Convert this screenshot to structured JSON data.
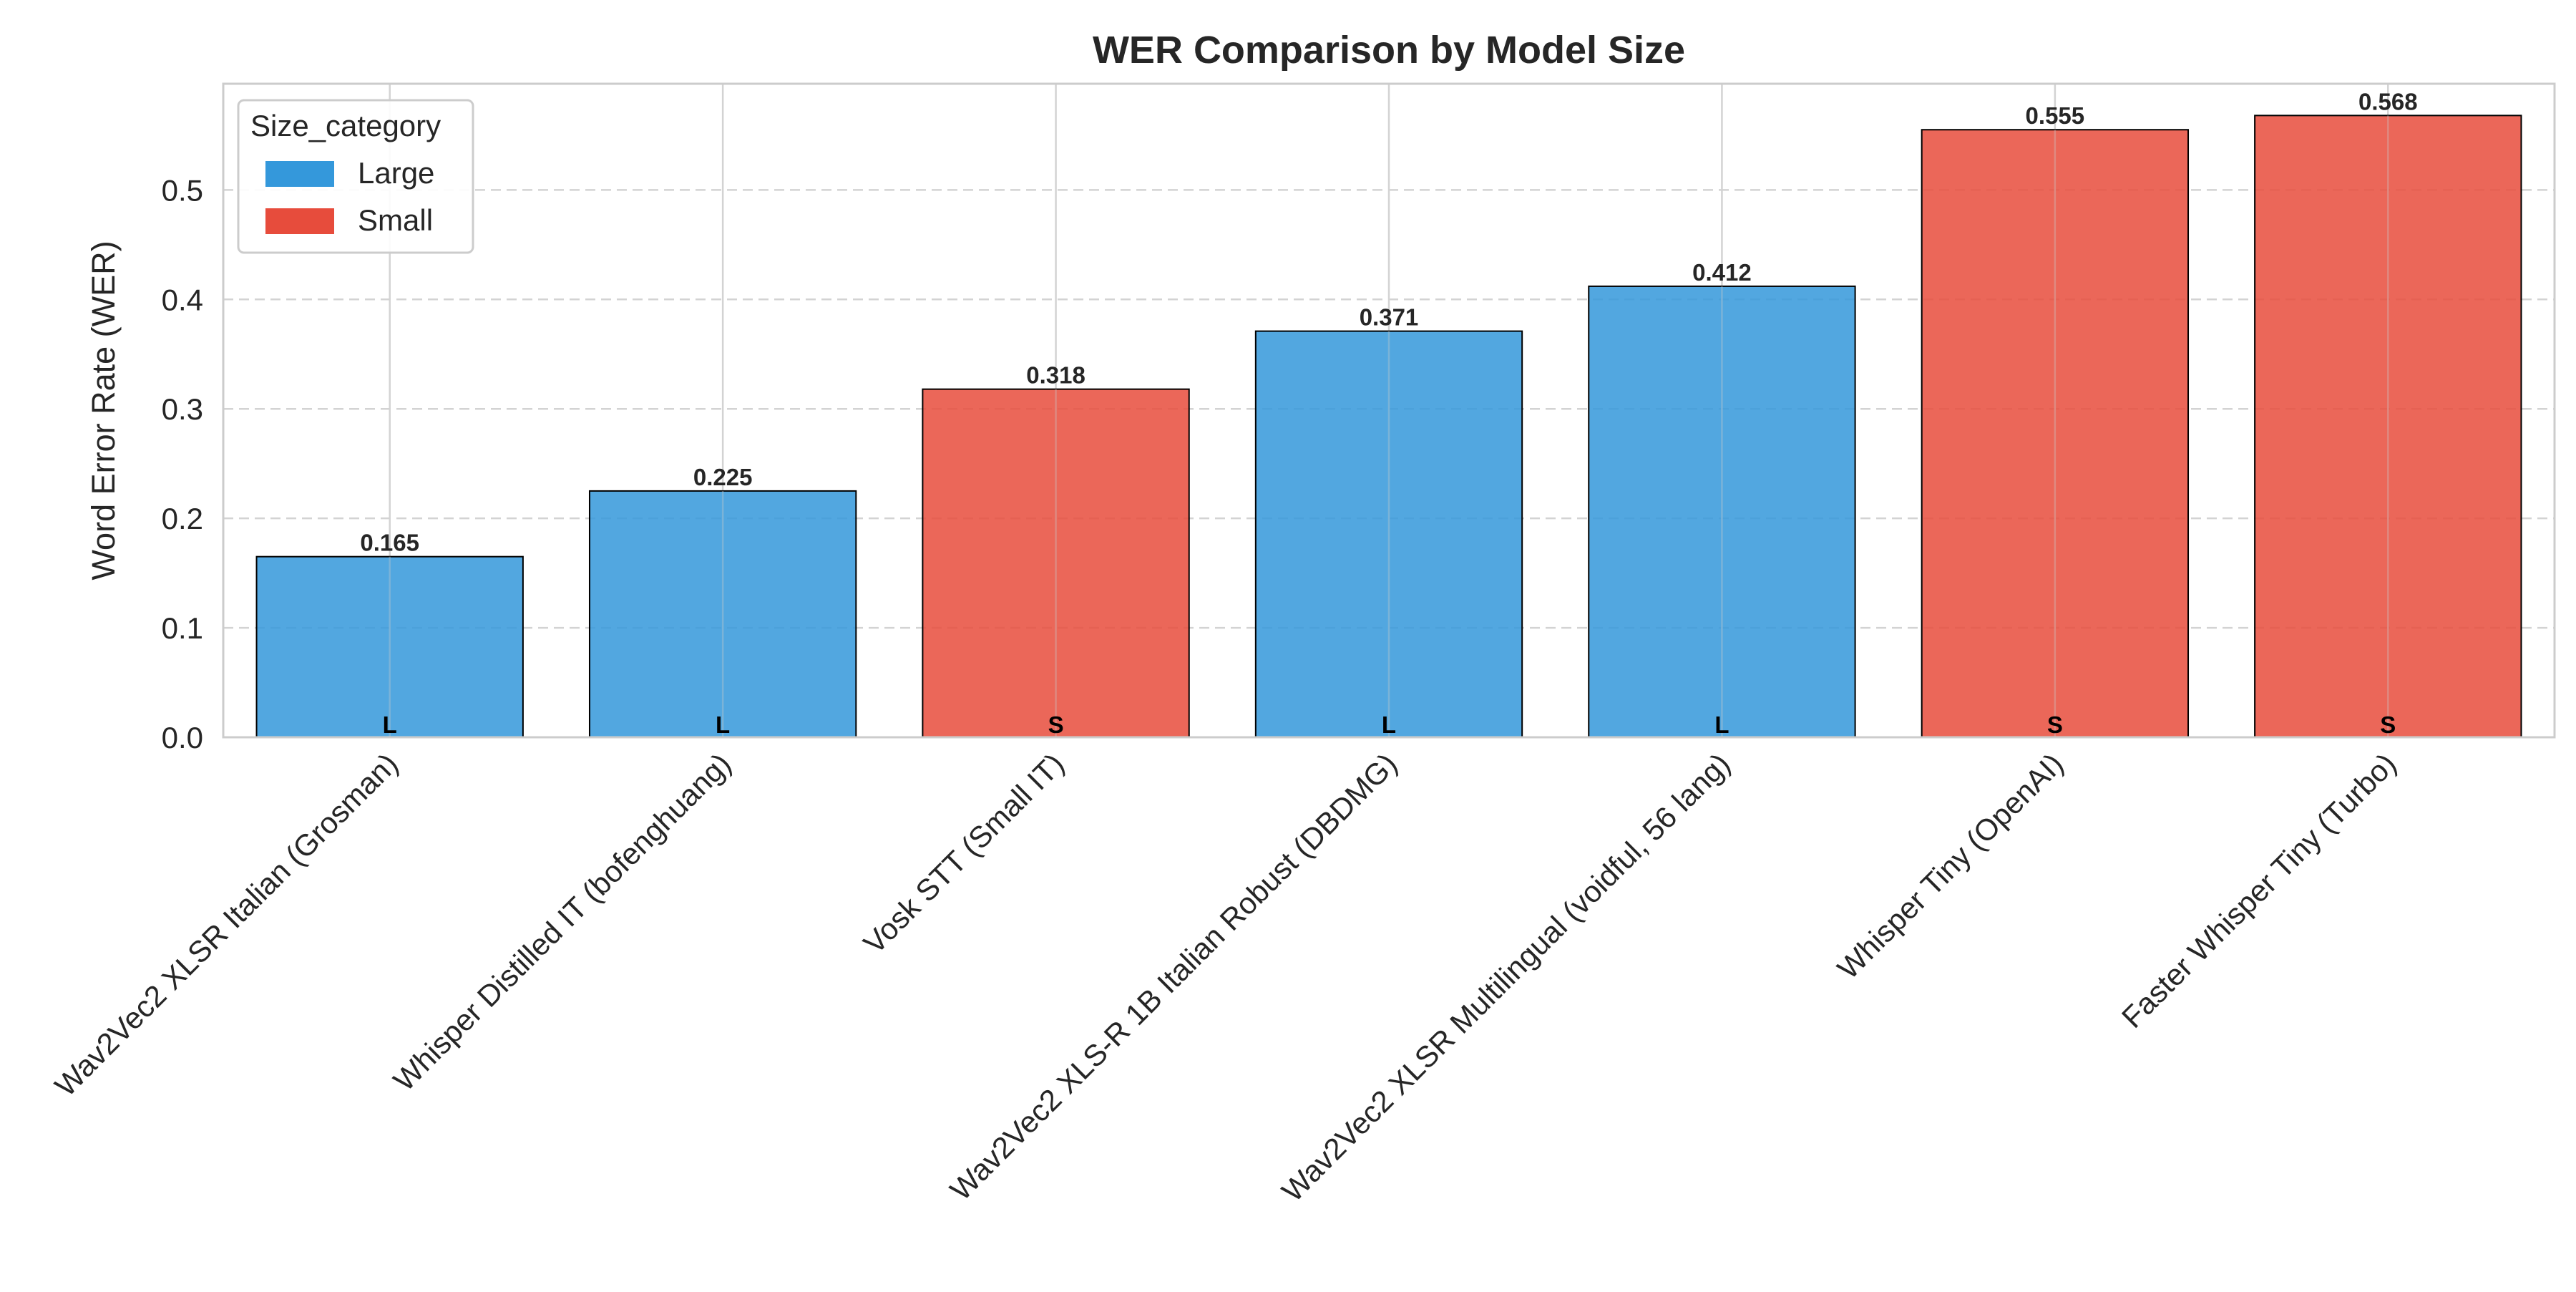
{
  "colors": {
    "Large": "#3498db",
    "Small": "#e74c3c",
    "grid": "#d3d3d3",
    "axes_edge": "#cccccc",
    "text": "#262626",
    "bar_edge": "#000000"
  },
  "chart_data": {
    "type": "bar",
    "title": "WER Comparison by Model Size",
    "xlabel": "",
    "ylabel": "Word Error Rate (WER)",
    "ylim": [
      0,
      0.597
    ],
    "yticks": [
      0.0,
      0.1,
      0.2,
      0.3,
      0.4,
      0.5
    ],
    "ytick_labels": [
      "0.0",
      "0.1",
      "0.2",
      "0.3",
      "0.4",
      "0.5"
    ],
    "grid": "y dashed, x solid",
    "legend": {
      "title": "Size_category",
      "position": "top-left",
      "entries": [
        "Large",
        "Small"
      ]
    },
    "categories": [
      "Wav2Vec2 XLSR Italian (Grosman)",
      "Whisper Distilled IT (bofenghuang)",
      "Vosk STT (Small IT)",
      "Wav2Vec2 XLS-R 1B Italian Robust (DBDMG)",
      "Wav2Vec2 XLSR Multilingual (voidful, 56 lang)",
      "Whisper Tiny (OpenAI)",
      "Faster Whisper Tiny (Turbo)"
    ],
    "values": [
      0.165,
      0.225,
      0.318,
      0.371,
      0.412,
      0.555,
      0.568
    ],
    "value_labels": [
      "0.165",
      "0.225",
      "0.318",
      "0.371",
      "0.412",
      "0.555",
      "0.568"
    ],
    "size_category": [
      "Large",
      "Large",
      "Small",
      "Large",
      "Large",
      "Small",
      "Small"
    ],
    "size_codes": [
      "L",
      "L",
      "S",
      "L",
      "L",
      "S",
      "S"
    ]
  }
}
